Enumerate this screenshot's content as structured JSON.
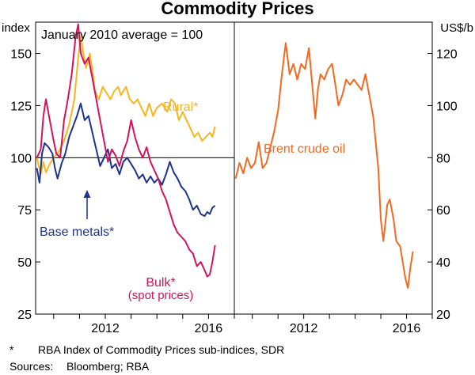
{
  "chart_data": {
    "title": "Commodity Prices",
    "left_panel": {
      "y_unit": "index",
      "note": "January 2010 average = 100",
      "ylim": [
        25,
        165
      ],
      "yticks": [
        25,
        50,
        75,
        100,
        125,
        150
      ],
      "xlim": [
        2009.3,
        2017.0
      ],
      "xticks": [
        2012,
        2016
      ],
      "series": [
        {
          "name": "Rural*",
          "color": "#f9b51c",
          "points": [
            [
              2009.35,
              100
            ],
            [
              2009.5,
              92
            ],
            [
              2009.6,
              98
            ],
            [
              2009.7,
              93
            ],
            [
              2009.85,
              97
            ],
            [
              2010.0,
              100
            ],
            [
              2010.2,
              103
            ],
            [
              2010.4,
              108
            ],
            [
              2010.6,
              116
            ],
            [
              2010.8,
              128
            ],
            [
              2010.95,
              148
            ],
            [
              2011.05,
              158
            ],
            [
              2011.15,
              150
            ],
            [
              2011.25,
              143
            ],
            [
              2011.4,
              150
            ],
            [
              2011.5,
              142
            ],
            [
              2011.6,
              132
            ],
            [
              2011.75,
              128
            ],
            [
              2011.9,
              134
            ],
            [
              2012.05,
              131
            ],
            [
              2012.2,
              128
            ],
            [
              2012.35,
              132
            ],
            [
              2012.5,
              134
            ],
            [
              2012.6,
              130
            ],
            [
              2012.8,
              134
            ],
            [
              2012.95,
              128
            ],
            [
              2013.1,
              126
            ],
            [
              2013.25,
              128
            ],
            [
              2013.4,
              124
            ],
            [
              2013.55,
              120
            ],
            [
              2013.7,
              126
            ],
            [
              2013.85,
              120
            ],
            [
              2014.0,
              124
            ],
            [
              2014.2,
              126
            ],
            [
              2014.4,
              122
            ],
            [
              2014.55,
              128
            ],
            [
              2014.7,
              126
            ],
            [
              2014.85,
              118
            ],
            [
              2015.0,
              122
            ],
            [
              2015.15,
              118
            ],
            [
              2015.3,
              114
            ],
            [
              2015.45,
              110
            ],
            [
              2015.6,
              112
            ],
            [
              2015.75,
              108
            ],
            [
              2015.9,
              110
            ],
            [
              2016.05,
              112
            ],
            [
              2016.15,
              110
            ],
            [
              2016.25,
              115
            ]
          ]
        },
        {
          "name": "Base metals*",
          "color": "#1c3390",
          "points": [
            [
              2009.35,
              95
            ],
            [
              2009.45,
              88
            ],
            [
              2009.55,
              102
            ],
            [
              2009.65,
              107
            ],
            [
              2009.8,
              105
            ],
            [
              2009.95,
              102
            ],
            [
              2010.05,
              95
            ],
            [
              2010.15,
              90
            ],
            [
              2010.3,
              97
            ],
            [
              2010.45,
              102
            ],
            [
              2010.6,
              110
            ],
            [
              2010.75,
              115
            ],
            [
              2010.9,
              120
            ],
            [
              2011.05,
              126
            ],
            [
              2011.2,
              118
            ],
            [
              2011.35,
              120
            ],
            [
              2011.5,
              112
            ],
            [
              2011.65,
              104
            ],
            [
              2011.8,
              96
            ],
            [
              2011.95,
              100
            ],
            [
              2012.1,
              104
            ],
            [
              2012.25,
              95
            ],
            [
              2012.4,
              97
            ],
            [
              2012.55,
              92
            ],
            [
              2012.7,
              98
            ],
            [
              2012.85,
              100
            ],
            [
              2013.0,
              97
            ],
            [
              2013.15,
              94
            ],
            [
              2013.3,
              90
            ],
            [
              2013.45,
              92
            ],
            [
              2013.6,
              88
            ],
            [
              2013.75,
              91
            ],
            [
              2013.9,
              88
            ],
            [
              2014.05,
              90
            ],
            [
              2014.2,
              87
            ],
            [
              2014.35,
              92
            ],
            [
              2014.5,
              98
            ],
            [
              2014.65,
              93
            ],
            [
              2014.8,
              90
            ],
            [
              2014.95,
              86
            ],
            [
              2015.1,
              84
            ],
            [
              2015.25,
              80
            ],
            [
              2015.4,
              75
            ],
            [
              2015.55,
              77
            ],
            [
              2015.7,
              73
            ],
            [
              2015.85,
              72
            ],
            [
              2015.95,
              74
            ],
            [
              2016.05,
              73
            ],
            [
              2016.15,
              76
            ],
            [
              2016.25,
              77
            ]
          ]
        },
        {
          "name": "Bulk*",
          "color": "#d2145a",
          "points": [
            [
              2009.35,
              100
            ],
            [
              2009.5,
              104
            ],
            [
              2009.6,
              120
            ],
            [
              2009.7,
              128
            ],
            [
              2009.85,
              118
            ],
            [
              2010.0,
              108
            ],
            [
              2010.1,
              102
            ],
            [
              2010.25,
              100
            ],
            [
              2010.4,
              118
            ],
            [
              2010.55,
              128
            ],
            [
              2010.7,
              140
            ],
            [
              2010.85,
              158
            ],
            [
              2010.95,
              164
            ],
            [
              2011.05,
              150
            ],
            [
              2011.2,
              145
            ],
            [
              2011.35,
              148
            ],
            [
              2011.5,
              138
            ],
            [
              2011.65,
              128
            ],
            [
              2011.8,
              118
            ],
            [
              2011.95,
              108
            ],
            [
              2012.1,
              98
            ],
            [
              2012.25,
              104
            ],
            [
              2012.4,
              101
            ],
            [
              2012.55,
              96
            ],
            [
              2012.7,
              103
            ],
            [
              2012.85,
              108
            ],
            [
              2013.0,
              118
            ],
            [
              2013.15,
              110
            ],
            [
              2013.3,
              104
            ],
            [
              2013.45,
              100
            ],
            [
              2013.6,
              105
            ],
            [
              2013.75,
              98
            ],
            [
              2013.9,
              94
            ],
            [
              2014.05,
              90
            ],
            [
              2014.2,
              84
            ],
            [
              2014.35,
              80
            ],
            [
              2014.5,
              74
            ],
            [
              2014.65,
              68
            ],
            [
              2014.8,
              64
            ],
            [
              2014.95,
              62
            ],
            [
              2015.1,
              60
            ],
            [
              2015.25,
              56
            ],
            [
              2015.4,
              54
            ],
            [
              2015.55,
              48
            ],
            [
              2015.7,
              50
            ],
            [
              2015.85,
              46
            ],
            [
              2015.95,
              43
            ],
            [
              2016.05,
              44
            ],
            [
              2016.15,
              50
            ],
            [
              2016.25,
              58
            ]
          ]
        }
      ],
      "labels": {
        "rural": "Rural*",
        "base": "Base metals*",
        "bulk1": "Bulk*",
        "bulk2": "(spot prices)"
      }
    },
    "right_panel": {
      "y_unit": "US$/b",
      "ylim": [
        20,
        132
      ],
      "yticks": [
        20,
        40,
        60,
        80,
        100,
        120
      ],
      "xlim": [
        2009.3,
        2017.0
      ],
      "xticks": [
        2012,
        2016
      ],
      "series": [
        {
          "name": "Brent crude oil",
          "color": "#f26a21",
          "points": [
            [
              2009.35,
              72
            ],
            [
              2009.5,
              78
            ],
            [
              2009.65,
              74
            ],
            [
              2009.8,
              80
            ],
            [
              2009.95,
              76
            ],
            [
              2010.1,
              78
            ],
            [
              2010.25,
              86
            ],
            [
              2010.4,
              76
            ],
            [
              2010.55,
              78
            ],
            [
              2010.7,
              84
            ],
            [
              2010.85,
              90
            ],
            [
              2011.0,
              98
            ],
            [
              2011.15,
              112
            ],
            [
              2011.3,
              124
            ],
            [
              2011.45,
              112
            ],
            [
              2011.6,
              116
            ],
            [
              2011.75,
              110
            ],
            [
              2011.9,
              116
            ],
            [
              2012.05,
              114
            ],
            [
              2012.2,
              122
            ],
            [
              2012.35,
              106
            ],
            [
              2012.45,
              95
            ],
            [
              2012.55,
              106
            ],
            [
              2012.65,
              112
            ],
            [
              2012.8,
              110
            ],
            [
              2012.95,
              114
            ],
            [
              2013.1,
              116
            ],
            [
              2013.2,
              110
            ],
            [
              2013.35,
              100
            ],
            [
              2013.5,
              104
            ],
            [
              2013.65,
              110
            ],
            [
              2013.8,
              108
            ],
            [
              2013.95,
              110
            ],
            [
              2014.1,
              108
            ],
            [
              2014.25,
              106
            ],
            [
              2014.4,
              112
            ],
            [
              2014.55,
              104
            ],
            [
              2014.7,
              96
            ],
            [
              2014.8,
              86
            ],
            [
              2014.9,
              76
            ],
            [
              2015.0,
              56
            ],
            [
              2015.1,
              48
            ],
            [
              2015.25,
              62
            ],
            [
              2015.35,
              64
            ],
            [
              2015.5,
              56
            ],
            [
              2015.6,
              48
            ],
            [
              2015.75,
              46
            ],
            [
              2015.85,
              40
            ],
            [
              2015.95,
              34
            ],
            [
              2016.05,
              30
            ],
            [
              2016.15,
              38
            ],
            [
              2016.25,
              44
            ]
          ]
        }
      ],
      "labels": {
        "brent": "Brent crude oil"
      }
    }
  },
  "footnotes": {
    "asterisk": "*",
    "asterisk_text": "RBA Index of Commodity Prices sub-indices, SDR",
    "sources_label": "Sources:",
    "sources_text": "Bloomberg; RBA"
  }
}
